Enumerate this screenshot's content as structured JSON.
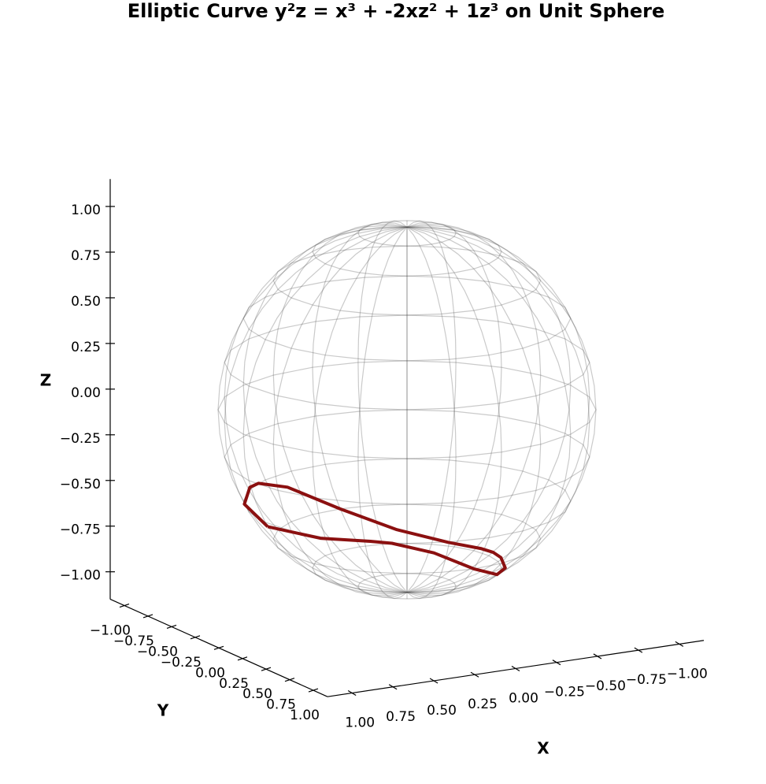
{
  "chart_data": {
    "type": "line3d",
    "title": "Elliptic Curve y²z = x³ + -2xz² + 1z³ on Unit Sphere",
    "xlabel": "X",
    "ylabel": "Y",
    "zlabel": "Z",
    "xlim": [
      -1.15,
      1.15
    ],
    "ylim": [
      -1.15,
      1.15
    ],
    "zlim": [
      -1.15,
      1.15
    ],
    "xticks": [
      {
        "value": -1,
        "label": "−1.00"
      },
      {
        "value": -0.75,
        "label": "−0.75"
      },
      {
        "value": -0.5,
        "label": "−0.50"
      },
      {
        "value": -0.25,
        "label": "−0.25"
      },
      {
        "value": 0,
        "label": "0.00"
      },
      {
        "value": 0.25,
        "label": "0.25"
      },
      {
        "value": 0.5,
        "label": "0.50"
      },
      {
        "value": 0.75,
        "label": "0.75"
      },
      {
        "value": 1,
        "label": "1.00"
      }
    ],
    "yticks": [
      {
        "value": -1,
        "label": "−1.00"
      },
      {
        "value": -0.75,
        "label": "−0.75"
      },
      {
        "value": -0.5,
        "label": "−0.50"
      },
      {
        "value": -0.25,
        "label": "−0.25"
      },
      {
        "value": 0,
        "label": "0.00"
      },
      {
        "value": 0.25,
        "label": "0.25"
      },
      {
        "value": 0.5,
        "label": "0.50"
      },
      {
        "value": 0.75,
        "label": "0.75"
      },
      {
        "value": 1,
        "label": "1.00"
      }
    ],
    "zticks": [
      {
        "value": -1,
        "label": "−1.00"
      },
      {
        "value": -0.75,
        "label": "−0.75"
      },
      {
        "value": -0.5,
        "label": "−0.50"
      },
      {
        "value": -0.25,
        "label": "−0.25"
      },
      {
        "value": 0,
        "label": "0.00"
      },
      {
        "value": 0.25,
        "label": "0.25"
      },
      {
        "value": 0.5,
        "label": "0.50"
      },
      {
        "value": 0.75,
        "label": "0.75"
      },
      {
        "value": 1,
        "label": "1.00"
      }
    ],
    "series": [
      {
        "color": "#8b1010",
        "x": [
          0.851,
          0.762,
          0.592,
          0.5,
          0.283,
          0,
          -0.244,
          -0.426,
          -0.512,
          -0.526,
          -0.512,
          -0.426,
          -0.244,
          0,
          0.283,
          0.5,
          0.592,
          0.762,
          0.851
        ],
        "y": [
          0,
          -0.402,
          -0.638,
          -0.707,
          -0.775,
          -0.707,
          -0.53,
          -0.302,
          -0.107,
          0,
          0.107,
          0.302,
          0.53,
          0.707,
          0.775,
          0.707,
          0.638,
          0.402,
          0
        ],
        "z": [
          -0.526,
          -0.508,
          -0.493,
          -0.5,
          -0.566,
          -0.707,
          -0.812,
          -0.853,
          -0.853,
          -0.851,
          -0.853,
          -0.853,
          -0.812,
          -0.707,
          -0.566,
          -0.5,
          -0.493,
          -0.508,
          -0.526
        ]
      }
    ]
  }
}
